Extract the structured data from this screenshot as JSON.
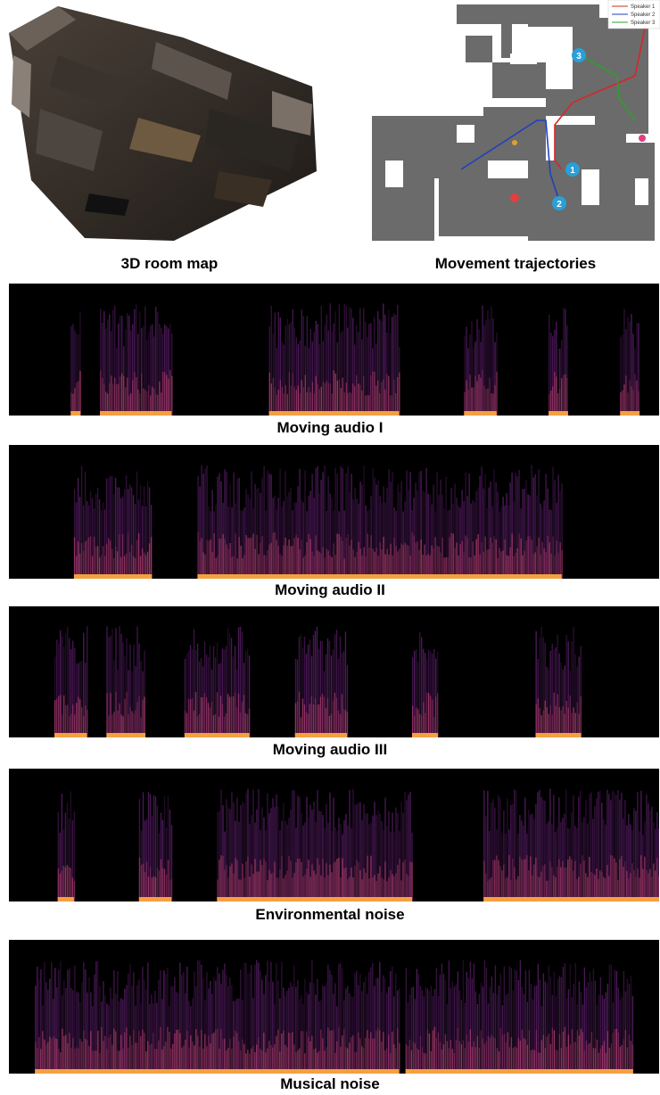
{
  "top_panels": {
    "room_map": {
      "caption": "3D room map"
    },
    "trajectories": {
      "caption": "Movement trajectories",
      "legend": [
        {
          "label": "Speaker 1",
          "color": "#d62728"
        },
        {
          "label": "Speaker 2",
          "color": "#1f3fbf"
        },
        {
          "label": "Speaker 3",
          "color": "#2ca02c"
        }
      ],
      "markers": [
        "1",
        "2",
        "3"
      ]
    }
  },
  "spectrograms": [
    {
      "caption": "Moving audio I",
      "segments": [
        [
          0.095,
          0.11
        ],
        [
          0.14,
          0.25
        ],
        [
          0.4,
          0.52
        ],
        [
          0.52,
          0.6
        ],
        [
          0.7,
          0.75
        ],
        [
          0.83,
          0.86
        ],
        [
          0.94,
          0.97
        ]
      ]
    },
    {
      "caption": "Moving audio II",
      "segments": [
        [
          0.1,
          0.22
        ],
        [
          0.29,
          0.85
        ]
      ]
    },
    {
      "caption": "Moving audio III",
      "segments": [
        [
          0.07,
          0.12
        ],
        [
          0.15,
          0.21
        ],
        [
          0.27,
          0.37
        ],
        [
          0.44,
          0.52
        ],
        [
          0.62,
          0.66
        ],
        [
          0.81,
          0.88
        ]
      ]
    },
    {
      "caption": "Environmental noise",
      "segments": [
        [
          0.075,
          0.1
        ],
        [
          0.2,
          0.25
        ],
        [
          0.32,
          0.62
        ],
        [
          0.73,
          1.0
        ]
      ]
    },
    {
      "caption": "Musical noise",
      "segments": [
        [
          0.04,
          0.52
        ],
        [
          0.52,
          0.6
        ],
        [
          0.61,
          0.96
        ]
      ]
    }
  ]
}
